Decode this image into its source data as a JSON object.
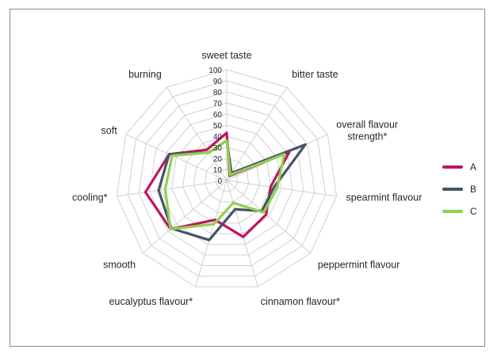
{
  "chart_data": {
    "type": "radar",
    "categories": [
      "sweet taste",
      "bitter taste",
      "overall flavour strength*",
      "spearmint flavour",
      "peppermint flavour",
      "cinnamon flavour*",
      "eucalyptus flavour*",
      "smooth",
      "cooling*",
      "soft",
      "burning"
    ],
    "category_lines": [
      [
        "sweet taste"
      ],
      [
        "bitter taste"
      ],
      [
        "overall flavour",
        "strength*"
      ],
      [
        "spearmint flavour"
      ],
      [
        "peppermint flavour"
      ],
      [
        "cinnamon flavour*"
      ],
      [
        "eucalyptus flavour*"
      ],
      [
        "smooth"
      ],
      [
        "cooling*"
      ],
      [
        "soft"
      ],
      [
        "burning"
      ]
    ],
    "rmax": 100,
    "ticks": [
      0,
      10,
      20,
      30,
      40,
      50,
      60,
      70,
      80,
      90,
      100
    ],
    "tick_labels": [
      "0",
      "10",
      "20",
      "30",
      "40",
      "50",
      "60",
      "70",
      "80",
      "90",
      "100"
    ],
    "series": [
      {
        "name": "A",
        "color": "#c0145f",
        "values": [
          43,
          5,
          62,
          40,
          47,
          53,
          37,
          67,
          74,
          57,
          33
        ]
      },
      {
        "name": "B",
        "color": "#44546a",
        "values": [
          36,
          8,
          78,
          43,
          42,
          27,
          56,
          66,
          62,
          57,
          30
        ]
      },
      {
        "name": "C",
        "color": "#92d050",
        "values": [
          36,
          6,
          57,
          46,
          44,
          21,
          41,
          67,
          56,
          54,
          30
        ]
      }
    ],
    "grid": true,
    "legend": "right"
  }
}
